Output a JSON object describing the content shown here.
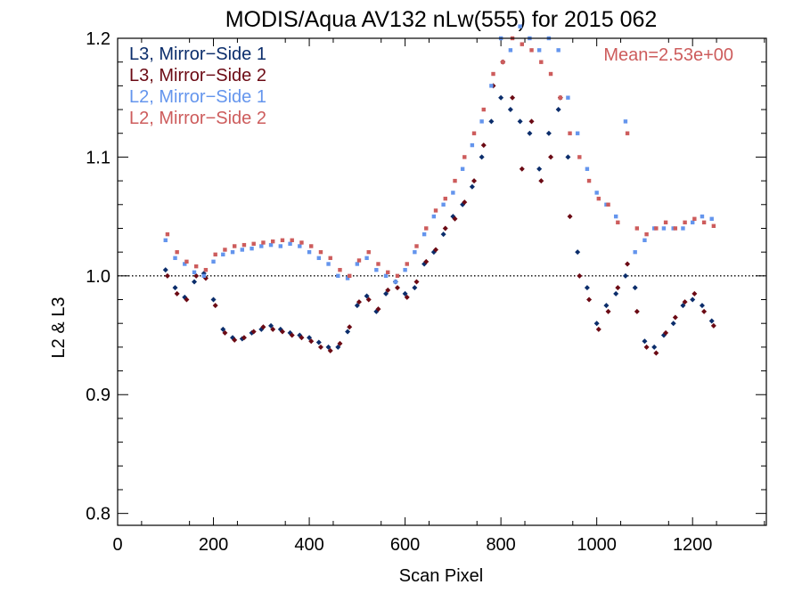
{
  "chart_data": {
    "type": "scatter",
    "title": "MODIS/Aqua AV132 nLw(555) for 2015 062",
    "xlabel": "Scan Pixel",
    "ylabel": "L2 & L3",
    "xlim": [
      0,
      1354
    ],
    "ylim": [
      0.79,
      1.2
    ],
    "x_ticks": [
      0,
      200,
      400,
      600,
      800,
      1000,
      1200
    ],
    "y_ticks": [
      0.8,
      0.9,
      1.0,
      1.1,
      1.2
    ],
    "x_tick_labels": [
      "0",
      "200",
      "400",
      "600",
      "800",
      "1000",
      "1200"
    ],
    "y_tick_labels": [
      "0.8",
      "0.9",
      "1.0",
      "1.1",
      "1.2"
    ],
    "reference_line": {
      "y": 1.0,
      "style": "dotted"
    },
    "annotation": "Mean=2.53e+00",
    "annotation_color": "#cd5c5c",
    "legend_position": "top-left",
    "series": [
      {
        "name": "L3, Mirror−Side 1",
        "color": "#0b2d6b",
        "marker": "diamond",
        "points": [
          [
            100,
            1.005
          ],
          [
            120,
            0.99
          ],
          [
            140,
            0.982
          ],
          [
            160,
            0.995
          ],
          [
            180,
            1.002
          ],
          [
            200,
            0.98
          ],
          [
            220,
            0.955
          ],
          [
            240,
            0.948
          ],
          [
            260,
            0.947
          ],
          [
            280,
            0.952
          ],
          [
            300,
            0.955
          ],
          [
            320,
            0.958
          ],
          [
            340,
            0.955
          ],
          [
            360,
            0.952
          ],
          [
            380,
            0.95
          ],
          [
            400,
            0.948
          ],
          [
            420,
            0.944
          ],
          [
            440,
            0.94
          ],
          [
            460,
            0.94
          ],
          [
            480,
            0.953
          ],
          [
            500,
            0.975
          ],
          [
            520,
            0.983
          ],
          [
            540,
            0.97
          ],
          [
            560,
            0.985
          ],
          [
            580,
            0.995
          ],
          [
            600,
            0.985
          ],
          [
            620,
            0.99
          ],
          [
            640,
            1.01
          ],
          [
            660,
            1.02
          ],
          [
            680,
            1.035
          ],
          [
            700,
            1.05
          ],
          [
            720,
            1.06
          ],
          [
            740,
            1.075
          ],
          [
            760,
            1.1
          ],
          [
            780,
            1.13
          ],
          [
            800,
            1.15
          ],
          [
            820,
            1.14
          ],
          [
            840,
            1.13
          ],
          [
            860,
            1.12
          ],
          [
            880,
            1.09
          ],
          [
            900,
            1.12
          ],
          [
            920,
            1.14
          ],
          [
            940,
            1.1
          ],
          [
            960,
            1.02
          ],
          [
            980,
            0.99
          ],
          [
            1000,
            0.96
          ],
          [
            1020,
            0.975
          ],
          [
            1040,
            0.985
          ],
          [
            1060,
            1.0
          ],
          [
            1080,
            0.99
          ],
          [
            1100,
            0.945
          ],
          [
            1120,
            0.94
          ],
          [
            1140,
            0.95
          ],
          [
            1160,
            0.96
          ],
          [
            1180,
            0.975
          ],
          [
            1200,
            0.98
          ],
          [
            1220,
            0.975
          ],
          [
            1240,
            0.962
          ]
        ]
      },
      {
        "name": "L3, Mirror−Side 2",
        "color": "#6b0a14",
        "marker": "diamond",
        "points": [
          [
            104,
            1.0
          ],
          [
            124,
            0.985
          ],
          [
            144,
            0.98
          ],
          [
            164,
            1.0
          ],
          [
            184,
            0.998
          ],
          [
            204,
            0.975
          ],
          [
            224,
            0.952
          ],
          [
            244,
            0.946
          ],
          [
            264,
            0.948
          ],
          [
            284,
            0.953
          ],
          [
            304,
            0.957
          ],
          [
            324,
            0.955
          ],
          [
            344,
            0.953
          ],
          [
            364,
            0.95
          ],
          [
            384,
            0.948
          ],
          [
            404,
            0.945
          ],
          [
            424,
            0.94
          ],
          [
            444,
            0.937
          ],
          [
            464,
            0.943
          ],
          [
            484,
            0.957
          ],
          [
            504,
            0.978
          ],
          [
            524,
            0.98
          ],
          [
            544,
            0.972
          ],
          [
            564,
            0.988
          ],
          [
            584,
            0.99
          ],
          [
            604,
            0.982
          ],
          [
            624,
            0.995
          ],
          [
            644,
            1.012
          ],
          [
            664,
            1.022
          ],
          [
            684,
            1.04
          ],
          [
            704,
            1.048
          ],
          [
            724,
            1.062
          ],
          [
            744,
            1.08
          ],
          [
            764,
            1.11
          ],
          [
            784,
            1.16
          ],
          [
            804,
            1.18
          ],
          [
            824,
            1.15
          ],
          [
            844,
            1.09
          ],
          [
            864,
            1.13
          ],
          [
            884,
            1.08
          ],
          [
            904,
            1.1
          ],
          [
            924,
            1.15
          ],
          [
            944,
            1.05
          ],
          [
            964,
            1.0
          ],
          [
            984,
            0.98
          ],
          [
            1004,
            0.955
          ],
          [
            1024,
            0.97
          ],
          [
            1044,
            0.99
          ],
          [
            1064,
            1.01
          ],
          [
            1084,
            0.97
          ],
          [
            1104,
            0.94
          ],
          [
            1124,
            0.935
          ],
          [
            1144,
            0.952
          ],
          [
            1164,
            0.965
          ],
          [
            1184,
            0.978
          ],
          [
            1204,
            0.985
          ],
          [
            1224,
            0.97
          ],
          [
            1244,
            0.958
          ]
        ]
      },
      {
        "name": "L2, Mirror−Side 1",
        "color": "#6495ed",
        "marker": "square",
        "points": [
          [
            100,
            1.03
          ],
          [
            120,
            1.015
          ],
          [
            140,
            1.01
          ],
          [
            160,
            1.003
          ],
          [
            180,
            1.0
          ],
          [
            200,
            1.012
          ],
          [
            220,
            1.018
          ],
          [
            240,
            1.02
          ],
          [
            260,
            1.022
          ],
          [
            280,
            1.023
          ],
          [
            300,
            1.025
          ],
          [
            320,
            1.026
          ],
          [
            340,
            1.025
          ],
          [
            360,
            1.027
          ],
          [
            380,
            1.025
          ],
          [
            400,
            1.02
          ],
          [
            420,
            1.015
          ],
          [
            440,
            1.01
          ],
          [
            460,
            1.0
          ],
          [
            480,
            0.998
          ],
          [
            500,
            1.01
          ],
          [
            520,
            1.015
          ],
          [
            540,
            1.005
          ],
          [
            560,
            1.0
          ],
          [
            580,
            0.995
          ],
          [
            600,
            1.005
          ],
          [
            620,
            1.02
          ],
          [
            640,
            1.035
          ],
          [
            660,
            1.05
          ],
          [
            680,
            1.06
          ],
          [
            700,
            1.07
          ],
          [
            720,
            1.09
          ],
          [
            740,
            1.11
          ],
          [
            760,
            1.13
          ],
          [
            780,
            1.16
          ],
          [
            800,
            1.2
          ],
          [
            820,
            1.19
          ],
          [
            840,
            1.21
          ],
          [
            860,
            1.2
          ],
          [
            880,
            1.19
          ],
          [
            900,
            1.2
          ],
          [
            920,
            1.19
          ],
          [
            940,
            1.15
          ],
          [
            960,
            1.12
          ],
          [
            980,
            1.09
          ],
          [
            1000,
            1.07
          ],
          [
            1020,
            1.06
          ],
          [
            1040,
            1.05
          ],
          [
            1060,
            1.13
          ],
          [
            1080,
            1.02
          ],
          [
            1100,
            1.03
          ],
          [
            1120,
            1.04
          ],
          [
            1140,
            1.04
          ],
          [
            1160,
            1.04
          ],
          [
            1180,
            1.04
          ],
          [
            1200,
            1.045
          ],
          [
            1220,
            1.05
          ],
          [
            1240,
            1.048
          ]
        ]
      },
      {
        "name": "L2, Mirror−Side 2",
        "color": "#cd5c5c",
        "marker": "square",
        "points": [
          [
            104,
            1.035
          ],
          [
            124,
            1.02
          ],
          [
            144,
            1.012
          ],
          [
            164,
            1.008
          ],
          [
            184,
            1.005
          ],
          [
            204,
            1.018
          ],
          [
            224,
            1.022
          ],
          [
            244,
            1.025
          ],
          [
            264,
            1.026
          ],
          [
            284,
            1.027
          ],
          [
            304,
            1.028
          ],
          [
            324,
            1.029
          ],
          [
            344,
            1.03
          ],
          [
            364,
            1.03
          ],
          [
            384,
            1.028
          ],
          [
            404,
            1.025
          ],
          [
            424,
            1.02
          ],
          [
            444,
            1.015
          ],
          [
            464,
            1.005
          ],
          [
            484,
            1.0
          ],
          [
            504,
            1.013
          ],
          [
            524,
            1.02
          ],
          [
            544,
            1.01
          ],
          [
            564,
            1.003
          ],
          [
            584,
            1.0
          ],
          [
            604,
            1.01
          ],
          [
            624,
            1.025
          ],
          [
            644,
            1.04
          ],
          [
            664,
            1.055
          ],
          [
            684,
            1.065
          ],
          [
            704,
            1.08
          ],
          [
            724,
            1.1
          ],
          [
            744,
            1.12
          ],
          [
            764,
            1.14
          ],
          [
            784,
            1.17
          ],
          [
            804,
            1.18
          ],
          [
            824,
            1.2
          ],
          [
            844,
            1.195
          ],
          [
            864,
            1.19
          ],
          [
            884,
            1.18
          ],
          [
            904,
            1.17
          ],
          [
            924,
            1.15
          ],
          [
            944,
            1.12
          ],
          [
            964,
            1.1
          ],
          [
            984,
            1.08
          ],
          [
            1004,
            1.065
          ],
          [
            1024,
            1.06
          ],
          [
            1044,
            1.045
          ],
          [
            1064,
            1.12
          ],
          [
            1084,
            1.04
          ],
          [
            1104,
            1.035
          ],
          [
            1124,
            1.04
          ],
          [
            1144,
            1.045
          ],
          [
            1164,
            1.04
          ],
          [
            1184,
            1.045
          ],
          [
            1204,
            1.048
          ],
          [
            1224,
            1.045
          ],
          [
            1244,
            1.042
          ]
        ]
      }
    ]
  }
}
